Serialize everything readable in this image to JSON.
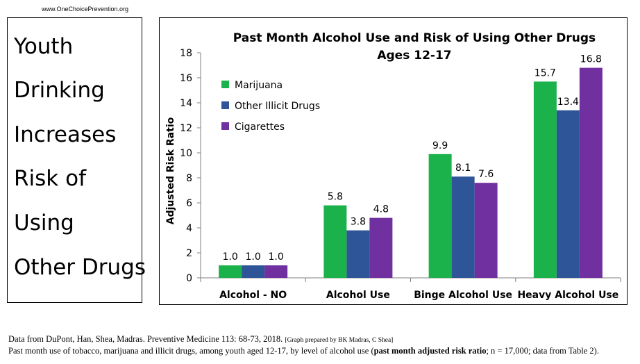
{
  "site_url": "www.OneChoicePrevention.org",
  "side_title": {
    "lines": [
      "Youth",
      "Drinking",
      "Increases",
      "Risk of",
      "Using",
      "Other Drugs"
    ]
  },
  "chart_data": {
    "type": "bar",
    "title": "Past Month Alcohol Use and Risk of Using Other Drugs",
    "subtitle": "Ages 12-17",
    "xlabel": "",
    "ylabel": "Adjusted Risk Ratio",
    "ylim": [
      0,
      18
    ],
    "yticks": [
      0,
      2,
      4,
      6,
      8,
      10,
      12,
      14,
      16,
      18
    ],
    "categories": [
      "Alcohol - NO",
      "Alcohol Use",
      "Binge Alcohol Use",
      "Heavy Alcohol Use"
    ],
    "series": [
      {
        "name": "Marijuana",
        "color": "#1cb24b",
        "values": [
          1.0,
          5.8,
          9.9,
          15.7
        ]
      },
      {
        "name": "Other Illicit Drugs",
        "color": "#2e5597",
        "values": [
          1.0,
          3.8,
          8.1,
          13.4
        ]
      },
      {
        "name": "Cigarettes",
        "color": "#7030a0",
        "values": [
          1.0,
          4.8,
          7.6,
          16.8
        ]
      }
    ],
    "data_labels": [
      [
        "1.0",
        "5.8",
        "9.9",
        "15.7"
      ],
      [
        "1.0",
        "3.8",
        "8.1",
        "13.4"
      ],
      [
        "1.0",
        "4.8",
        "7.6",
        "16.8"
      ]
    ],
    "grid": false,
    "legend_position": "top-left"
  },
  "footer": {
    "line1_text": "Data from DuPont, Han, Shea, Madras. Preventive Medicine 113: 68-73, 2018.",
    "line1_small": "[Graph prepared by BK Madras, C Shea]",
    "line2_pre": "Past month use of tobacco, marijuana and illicit drugs, among youth aged 12-17, by level of alcohol use (",
    "line2_bold": "past month adjusted risk ratio",
    "line2_post": "; n = 17,000; data from Table 2)."
  }
}
